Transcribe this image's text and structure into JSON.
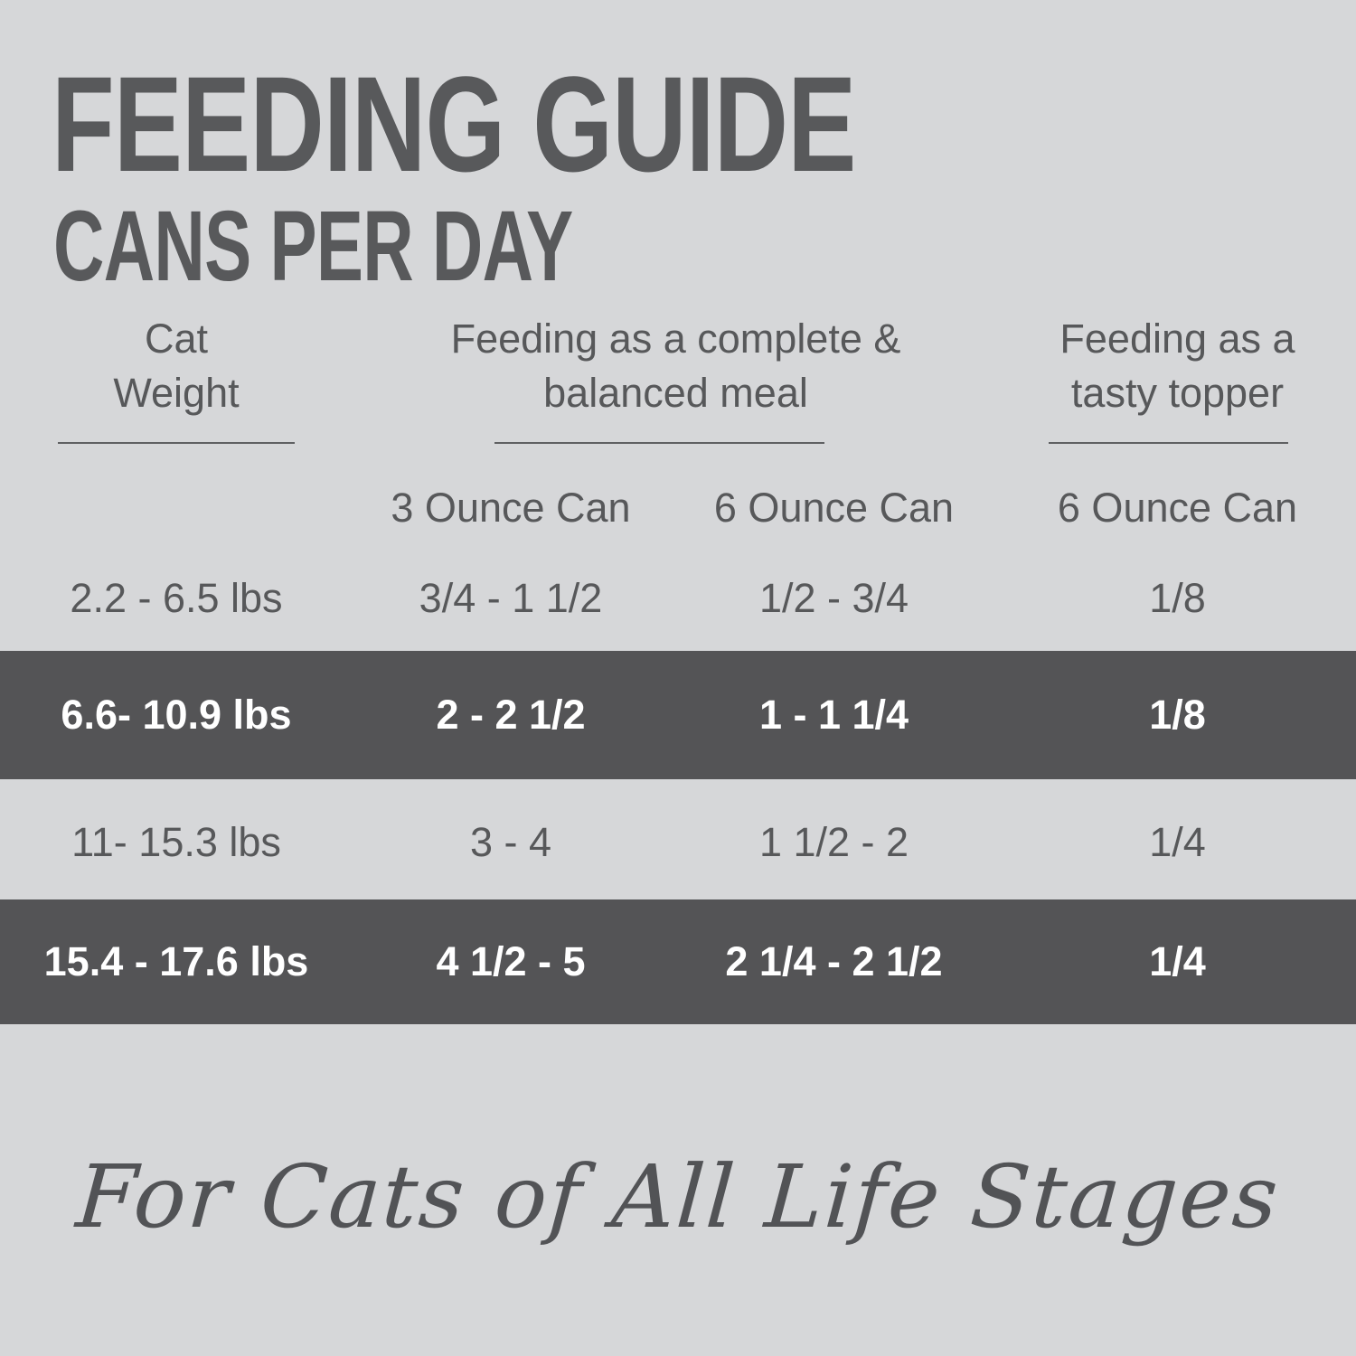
{
  "title": "FEEDING GUIDE",
  "subtitle": "CANS PER DAY",
  "table": {
    "headers": {
      "weight": {
        "line1": "Cat",
        "line2": "Weight"
      },
      "complete": {
        "line1": "Feeding as a complete &",
        "line2": "balanced meal"
      },
      "topper": {
        "line1": "Feeding as a",
        "line2": "tasty topper"
      }
    },
    "sub_headers": [
      "3 Ounce Can",
      "6 Ounce Can",
      "6 Ounce Can"
    ],
    "rows": [
      {
        "highlight": false,
        "cells": [
          "2.2 - 6.5 lbs",
          "3/4 - 1 1/2",
          "1/2 - 3/4",
          "1/8"
        ]
      },
      {
        "highlight": true,
        "cells": [
          "6.6- 10.9 lbs",
          "2 - 2 1/2",
          "1 - 1 1/4",
          "1/8"
        ]
      },
      {
        "highlight": false,
        "cells": [
          "11- 15.3 lbs",
          "3 - 4",
          "1 1/2 - 2",
          "1/4"
        ]
      },
      {
        "highlight": true,
        "cells": [
          "15.4 - 17.6 lbs",
          "4 1/2 - 5",
          "2 1/4 - 2 1/2",
          "1/4"
        ]
      }
    ]
  },
  "footer": {
    "tagline": "For Cats of All Life Stages"
  },
  "colors": {
    "background": "#d6d7d9",
    "text": "#58595b",
    "band": "#545456",
    "band_text": "#ffffff"
  }
}
